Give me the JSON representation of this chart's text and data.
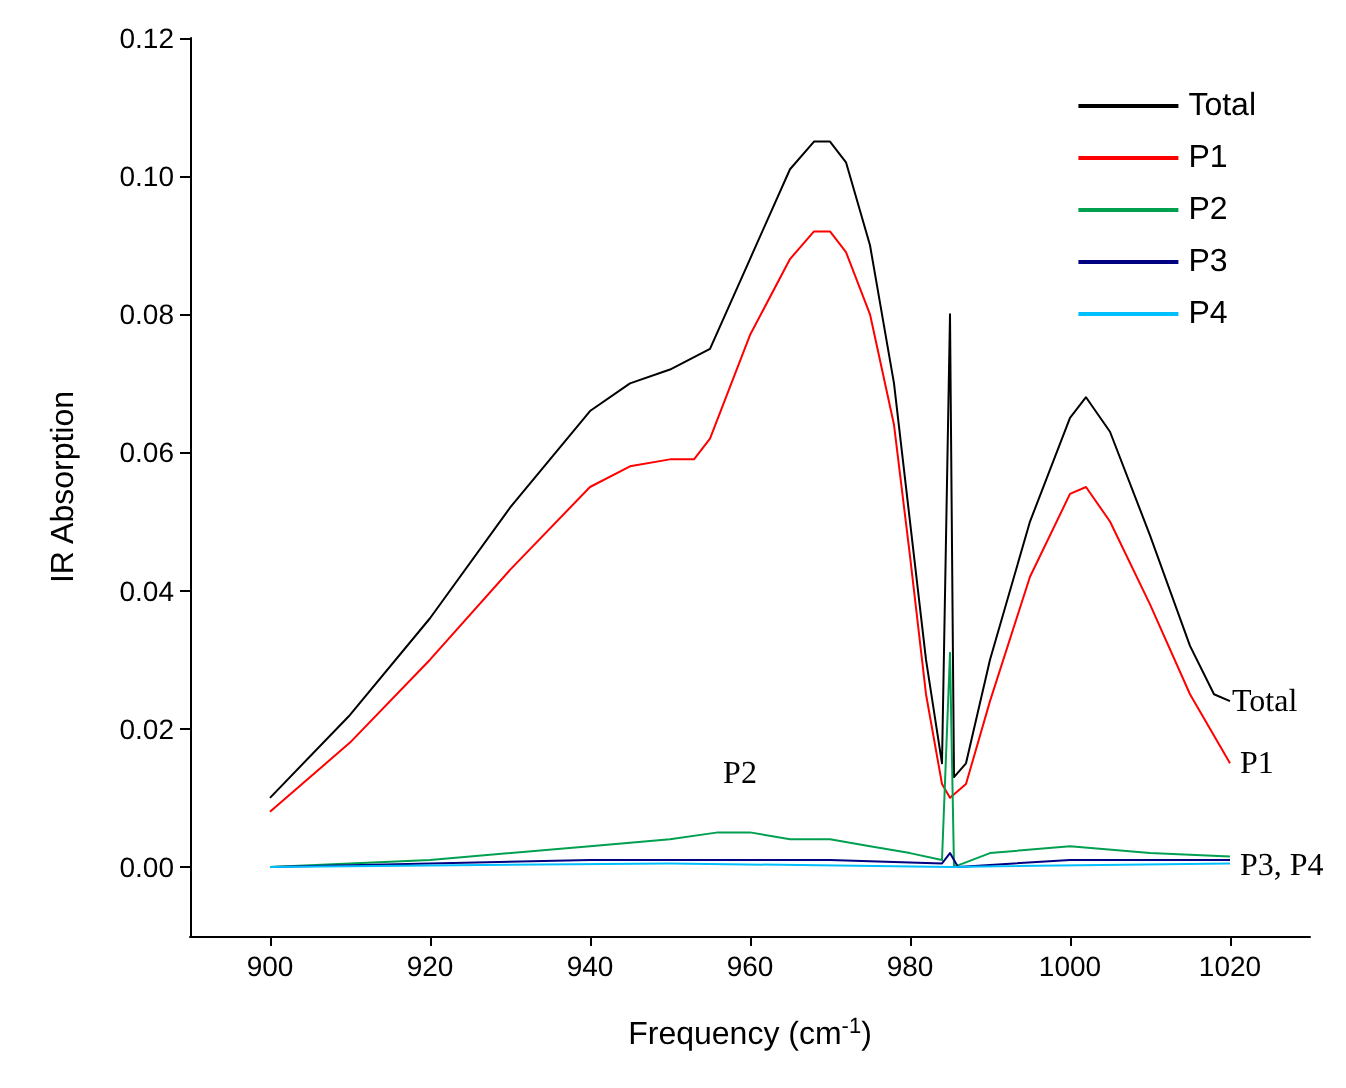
{
  "chart_data": {
    "type": "line",
    "xlabel": "Frequency (cm$^{-1}$)",
    "ylabel": "IR Absorption",
    "xlim": [
      890,
      1030
    ],
    "xticks": [
      900,
      920,
      940,
      960,
      980,
      1000,
      1020
    ],
    "ylim": [
      -0.01,
      0.12
    ],
    "yticks": [
      {
        "value": 0,
        "label": "0.00"
      },
      {
        "value": 0.02,
        "label": "0.02"
      },
      {
        "value": 0.04,
        "label": "0.04"
      },
      {
        "value": 0.06,
        "label": "0.06"
      },
      {
        "value": 0.08,
        "label": "0.08"
      },
      {
        "value": 0.1,
        "label": "0.10"
      },
      {
        "value": 0.12,
        "label": "0.12"
      }
    ],
    "grid": false,
    "legend": "top right",
    "series": [
      {
        "name": "Total",
        "color": "#000000",
        "x": [
          900,
          910,
          920,
          930,
          940,
          945,
          950,
          955,
          960,
          965,
          968,
          970,
          972,
          975,
          978,
          980,
          982,
          984,
          985,
          985.5,
          987,
          990,
          995,
          1000,
          1002,
          1005,
          1010,
          1015,
          1018,
          1020
        ],
        "values": [
          0.01,
          0.022,
          0.036,
          0.052,
          0.066,
          0.07,
          0.072,
          0.075,
          0.088,
          0.101,
          0.105,
          0.105,
          0.102,
          0.09,
          0.07,
          0.05,
          0.03,
          0.015,
          0.08,
          0.013,
          0.015,
          0.03,
          0.05,
          0.065,
          0.068,
          0.063,
          0.048,
          0.032,
          0.025,
          0.024
        ]
      },
      {
        "name": "P1",
        "color": "#ff0000",
        "x": [
          900,
          910,
          920,
          930,
          940,
          945,
          950,
          953,
          955,
          960,
          965,
          968,
          970,
          972,
          975,
          978,
          980,
          982,
          984,
          985,
          987,
          990,
          995,
          1000,
          1002,
          1005,
          1010,
          1015,
          1020
        ],
        "values": [
          0.008,
          0.018,
          0.03,
          0.043,
          0.055,
          0.058,
          0.059,
          0.059,
          0.062,
          0.077,
          0.088,
          0.092,
          0.092,
          0.089,
          0.08,
          0.064,
          0.045,
          0.025,
          0.012,
          0.01,
          0.012,
          0.024,
          0.042,
          0.054,
          0.055,
          0.05,
          0.038,
          0.025,
          0.015
        ]
      },
      {
        "name": "P2",
        "color": "#00a050",
        "x": [
          900,
          920,
          940,
          950,
          956,
          960,
          965,
          970,
          975,
          980,
          984,
          985,
          985.5,
          990,
          1000,
          1010,
          1020
        ],
        "values": [
          0.0,
          0.001,
          0.003,
          0.004,
          0.005,
          0.005,
          0.004,
          0.004,
          0.003,
          0.002,
          0.001,
          0.031,
          0.0,
          0.002,
          0.003,
          0.002,
          0.0015
        ]
      },
      {
        "name": "P3",
        "color": "#000080",
        "x": [
          900,
          940,
          960,
          970,
          984,
          985,
          986,
          1000,
          1020
        ],
        "values": [
          0.0,
          0.001,
          0.001,
          0.001,
          0.0005,
          0.002,
          0.0,
          0.001,
          0.001
        ]
      },
      {
        "name": "P4",
        "color": "#00bfff",
        "x": [
          900,
          950,
          985,
          1020
        ],
        "values": [
          0.0,
          0.0005,
          0.0,
          0.0005
        ]
      }
    ],
    "annotations": [
      "Total",
      "P1",
      "P2",
      "P3, P4"
    ]
  }
}
